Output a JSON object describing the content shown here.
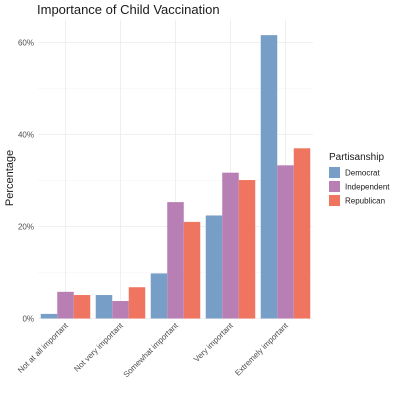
{
  "chart_data": {
    "type": "bar",
    "title": "Importance of Child Vaccination",
    "xlabel": "",
    "ylabel": "Percentage",
    "categories": [
      "Not at all important",
      "Not very important",
      "Somewhat important",
      "Very important",
      "Extremely important"
    ],
    "series": [
      {
        "name": "Democrat",
        "color": "#779ec6",
        "values": [
          1.0,
          5.1,
          9.8,
          22.4,
          61.6
        ]
      },
      {
        "name": "Independent",
        "color": "#b77fb4",
        "values": [
          5.8,
          3.8,
          25.3,
          31.7,
          33.3
        ]
      },
      {
        "name": "Republican",
        "color": "#ef7560",
        "values": [
          5.1,
          6.8,
          21.0,
          30.1,
          37.0
        ]
      }
    ],
    "ylim": [
      0,
      65
    ],
    "yticks": [
      0,
      20,
      40,
      60
    ],
    "ytick_labels": [
      "0%",
      "20%",
      "40%",
      "60%"
    ],
    "grid": true,
    "legend": {
      "title": "Partisanship",
      "placement": "right"
    }
  }
}
